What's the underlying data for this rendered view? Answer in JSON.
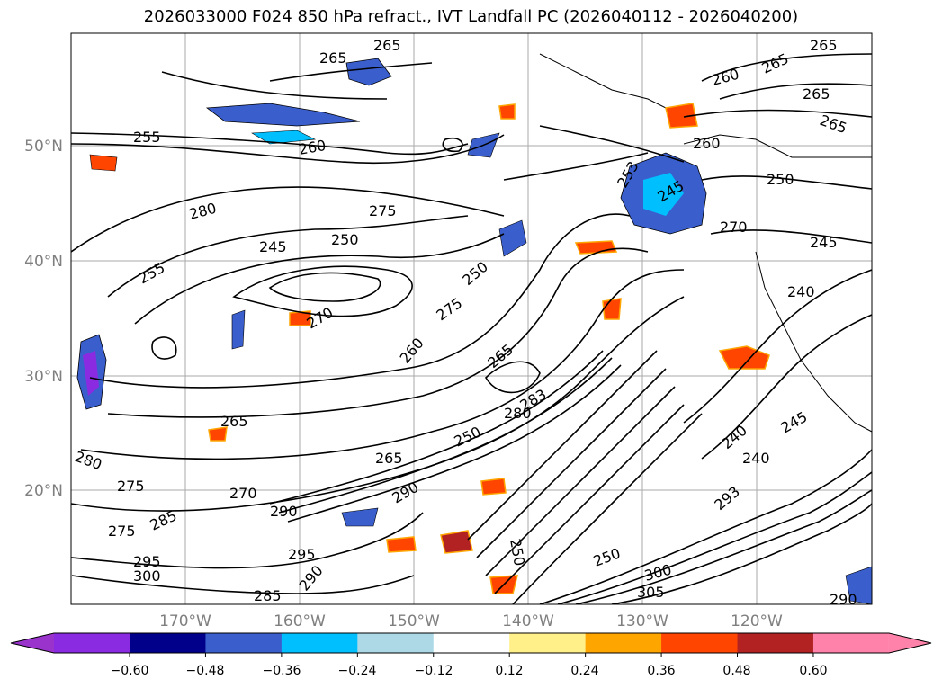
{
  "title": "2026033000 F024 850 hPa refract., IVT Landfall PC (2026040112 - 2026040200)",
  "map": {
    "lat_labels": [
      "50°N",
      "40°N",
      "30°N",
      "20°N"
    ],
    "lon_labels": [
      "170°W",
      "160°W",
      "150°W",
      "140°W",
      "130°W",
      "120°W"
    ],
    "contour_labels": [
      "265",
      "265",
      "265",
      "260",
      "265",
      "265",
      "265",
      "255",
      "260",
      "280",
      "275",
      "250",
      "245",
      "255",
      "250",
      "260",
      "253",
      "245",
      "250",
      "270",
      "265",
      "260",
      "275",
      "240",
      "245",
      "240",
      "270",
      "265",
      "280",
      "275",
      "275",
      "265",
      "285",
      "295",
      "300",
      "290",
      "285",
      "295",
      "270",
      "290",
      "250",
      "300",
      "250",
      "305",
      "293",
      "283",
      "280",
      "250",
      "240",
      "245",
      "290",
      "290"
    ]
  },
  "colorbar": {
    "colors": [
      "#9933cc",
      "#8a2be2",
      "#00008b",
      "#3a5fcd",
      "#00bfff",
      "#add8e6",
      "#ffffff",
      "#fff08a",
      "#ffa500",
      "#ff4500",
      "#b22222",
      "#ff82ab",
      "#ff82ab"
    ],
    "ticks": [
      "−0.60",
      "−0.48",
      "−0.36",
      "−0.24",
      "−0.12",
      "0.12",
      "0.24",
      "0.36",
      "0.48",
      "0.60"
    ]
  }
}
